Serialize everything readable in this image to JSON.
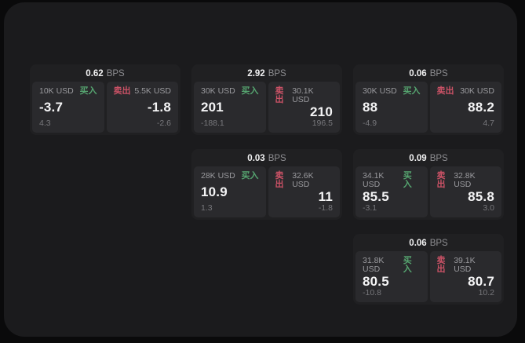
{
  "colors": {
    "page_background": "#0a0a0b",
    "window_background": "#1b1b1d",
    "card_background": "#202022",
    "panel_background": "#2a2a2d",
    "buy_green": "#56a570",
    "sell_red": "#cb5266",
    "primary_text": "#f4f4f5",
    "muted_text": "#9a9a9e",
    "secondary_text": "#77777b"
  },
  "bps_unit_label": "BPS",
  "buy_side_label": "买入",
  "sell_side_label": "卖出",
  "cards": [
    {
      "bps_value": "0.62",
      "bps_label": "BPS",
      "buy": {
        "amount": "10K USD",
        "side_label": "买入",
        "price": "-3.7",
        "secondary": "4.3"
      },
      "sell": {
        "side_label": "卖出",
        "amount": "5.5K USD",
        "price": "-1.8",
        "secondary": "-2.6"
      }
    },
    {
      "bps_value": "2.92",
      "bps_label": "BPS",
      "buy": {
        "amount": "30K USD",
        "side_label": "买入",
        "price": "201",
        "secondary": "-188.1"
      },
      "sell": {
        "side_label": "卖出",
        "amount": "30.1K USD",
        "price": "210",
        "secondary": "196.5"
      }
    },
    {
      "bps_value": "0.06",
      "bps_label": "BPS",
      "buy": {
        "amount": "30K USD",
        "side_label": "买入",
        "price": "88",
        "secondary": "-4.9"
      },
      "sell": {
        "side_label": "卖出",
        "amount": "30K USD",
        "price": "88.2",
        "secondary": "4.7"
      }
    },
    {
      "bps_value": "0.03",
      "bps_label": "BPS",
      "buy": {
        "amount": "28K USD",
        "side_label": "买入",
        "price": "10.9",
        "secondary": "1.3"
      },
      "sell": {
        "side_label": "卖出",
        "amount": "32.6K USD",
        "price": "11",
        "secondary": "-1.8"
      }
    },
    {
      "bps_value": "0.09",
      "bps_label": "BPS",
      "buy": {
        "amount": "34.1K USD",
        "side_label": "买入",
        "price": "85.5",
        "secondary": "-3.1"
      },
      "sell": {
        "side_label": "卖出",
        "amount": "32.8K USD",
        "price": "85.8",
        "secondary": "3.0"
      }
    },
    {
      "bps_value": "0.06",
      "bps_label": "BPS",
      "buy": {
        "amount": "31.8K USD",
        "side_label": "买入",
        "price": "80.5",
        "secondary": "-10.8"
      },
      "sell": {
        "side_label": "卖出",
        "amount": "39.1K USD",
        "price": "80.7",
        "secondary": "10.2"
      }
    }
  ]
}
